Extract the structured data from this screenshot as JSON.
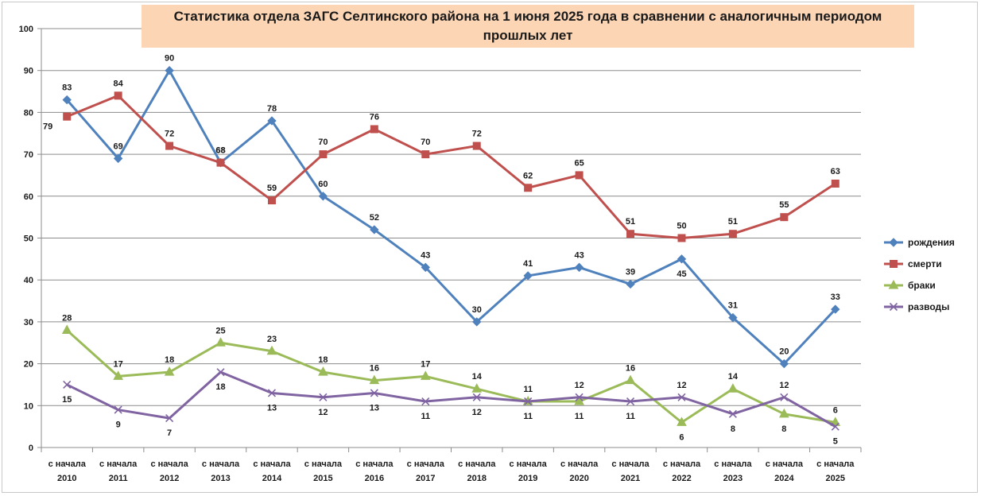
{
  "chart_data": {
    "type": "line",
    "title": "Статистика отдела ЗАГС Селтинского района на 1 июня 2025 года в сравнении с аналогичным  периодом прошлых лет",
    "categories": [
      [
        "с начала",
        "2010"
      ],
      [
        "с начала",
        "2011"
      ],
      [
        "с начала",
        "2012"
      ],
      [
        "с начала",
        "2013"
      ],
      [
        "с начала",
        "2014"
      ],
      [
        "с начала",
        "2015"
      ],
      [
        "с начала",
        "2016"
      ],
      [
        "с начала",
        "2017"
      ],
      [
        "с начала",
        "2018"
      ],
      [
        "с начала",
        "2019"
      ],
      [
        "с начала",
        "2020"
      ],
      [
        "с начала",
        "2021"
      ],
      [
        "с начала",
        "2022"
      ],
      [
        "с начала",
        "2023"
      ],
      [
        "с начала",
        "2024"
      ],
      [
        "с начала",
        "2025"
      ]
    ],
    "ylim": [
      0,
      100
    ],
    "yticks": [
      0,
      10,
      20,
      30,
      40,
      50,
      60,
      70,
      80,
      90,
      100
    ],
    "grid": true,
    "legend_position": "right",
    "series": [
      {
        "name": "рождения",
        "color": "#4f81bd",
        "marker": "diamond",
        "values": [
          83,
          69,
          90,
          68,
          78,
          60,
          52,
          43,
          30,
          41,
          43,
          39,
          45,
          31,
          20,
          33
        ],
        "label_pos": [
          "above",
          "above",
          "above",
          "above",
          "above",
          "above",
          "above",
          "above",
          "above",
          "above",
          "above",
          "above",
          "below",
          "above",
          "above",
          "above"
        ]
      },
      {
        "name": "смерти",
        "color": "#c0504d",
        "marker": "square",
        "values": [
          79,
          84,
          72,
          68,
          59,
          70,
          76,
          70,
          72,
          62,
          65,
          51,
          50,
          51,
          55,
          63
        ],
        "label_pos": [
          "left",
          "above",
          "above",
          "above",
          "above",
          "above",
          "above",
          "above",
          "above",
          "above",
          "above",
          "above",
          "above",
          "above",
          "above",
          "above"
        ]
      },
      {
        "name": "браки",
        "color": "#9bbb59",
        "marker": "triangle",
        "values": [
          28,
          17,
          18,
          25,
          23,
          18,
          16,
          17,
          14,
          11,
          11,
          16,
          6,
          14,
          8,
          6
        ],
        "label_pos": [
          "above",
          "above",
          "above",
          "above",
          "above",
          "above",
          "above",
          "above",
          "above",
          "above",
          "below",
          "above",
          "below",
          "above",
          "below",
          "above"
        ]
      },
      {
        "name": "разводы",
        "color": "#8064a2",
        "marker": "x",
        "values": [
          15,
          9,
          7,
          18,
          13,
          12,
          13,
          11,
          12,
          11,
          12,
          11,
          12,
          8,
          12,
          5
        ],
        "label_pos": [
          "below",
          "below",
          "below",
          "below",
          "below",
          "below",
          "below",
          "below",
          "below",
          "below",
          "above",
          "below",
          "above",
          "below",
          "above",
          "below"
        ]
      }
    ]
  }
}
